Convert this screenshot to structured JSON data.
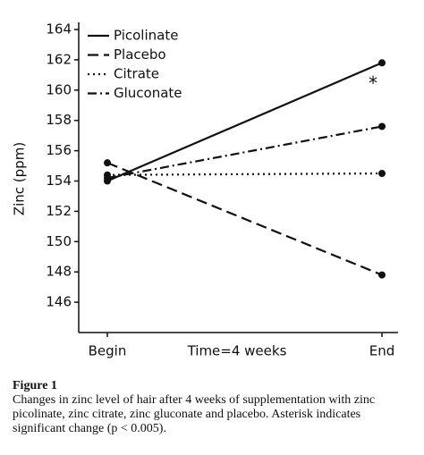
{
  "chart_data": {
    "type": "line",
    "categories": [
      "Begin",
      "End"
    ],
    "xlabel": "Time=4 weeks",
    "ylabel": "Zinc (ppm)",
    "ylim": [
      144,
      164
    ],
    "yticks": [
      146,
      148,
      150,
      152,
      154,
      156,
      158,
      160,
      162,
      164
    ],
    "series": [
      {
        "name": "Picolinate",
        "color": "#111111",
        "dash": "solid",
        "values": [
          154.0,
          161.8
        ]
      },
      {
        "name": "Placebo",
        "color": "#111111",
        "dash": "dashed",
        "values": [
          155.2,
          147.8
        ]
      },
      {
        "name": "Citrate",
        "color": "#111111",
        "dash": "dotted",
        "values": [
          154.4,
          154.5
        ]
      },
      {
        "name": "Gluconate",
        "color": "#111111",
        "dash": "dashdot",
        "values": [
          154.2,
          157.6
        ]
      }
    ],
    "annotations": [
      {
        "text": "*",
        "category": 1,
        "value": 160.6
      }
    ],
    "legend": "upper left"
  },
  "caption": {
    "label": "Figure 1",
    "text": "Changes in zinc level of hair after 4 weeks of supplementation with zinc picolinate, zinc citrate, zinc gluconate and placebo. Asterisk indicates significant change (p < 0.005)."
  }
}
